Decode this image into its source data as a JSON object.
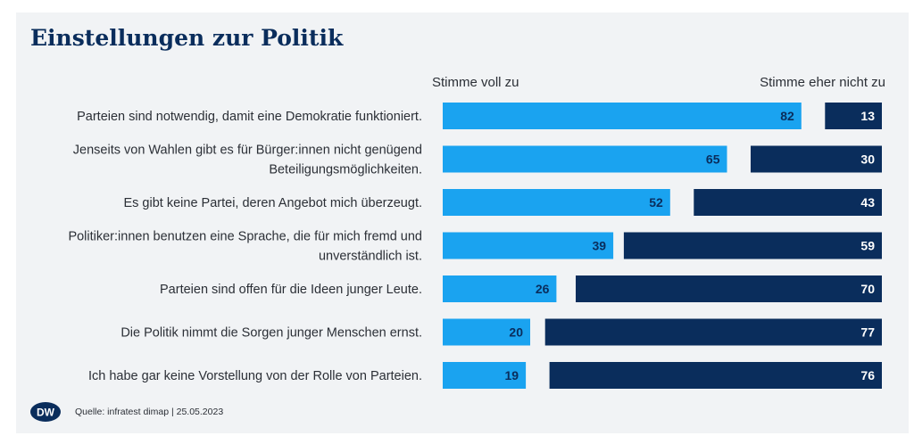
{
  "title": "Einstellungen zur Politik",
  "legend": {
    "agree": "Stimme voll zu",
    "disagree": "Stimme eher nicht zu"
  },
  "colors": {
    "agree": "#1aa3f0",
    "disagree": "#0a2d5c",
    "title": "#0a2d5c",
    "background": "#f1f3f5"
  },
  "source": "Quelle: infratest dimap | 25.05.2023",
  "logo_text": "DW",
  "chart_data": {
    "type": "bar",
    "orientation": "horizontal",
    "stacked": "diverging",
    "title": "Einstellungen zur Politik",
    "categories": [
      [
        "Parteien sind notwendig, damit eine Demokratie funktioniert."
      ],
      [
        "Jenseits von Wahlen gibt es für Bürger:innen nicht genügend",
        "Beteiligungsmöglichkeiten."
      ],
      [
        "Es gibt keine Partei, deren Angebot mich überzeugt."
      ],
      [
        "Politiker:innen benutzen eine Sprache, die für mich fremd und",
        "unverständlich ist."
      ],
      [
        "Parteien sind offen für die Ideen junger Leute."
      ],
      [
        "Die Politik nimmt die Sorgen junger Menschen ernst."
      ],
      [
        "Ich habe gar keine Vorstellung von der Rolle von Parteien."
      ]
    ],
    "series": [
      {
        "name": "Stimme voll zu",
        "values": [
          82,
          65,
          52,
          39,
          26,
          20,
          19
        ]
      },
      {
        "name": "Stimme eher nicht zu",
        "values": [
          13,
          30,
          43,
          59,
          70,
          77,
          76
        ]
      }
    ],
    "legend_position": "top",
    "grid": false
  }
}
